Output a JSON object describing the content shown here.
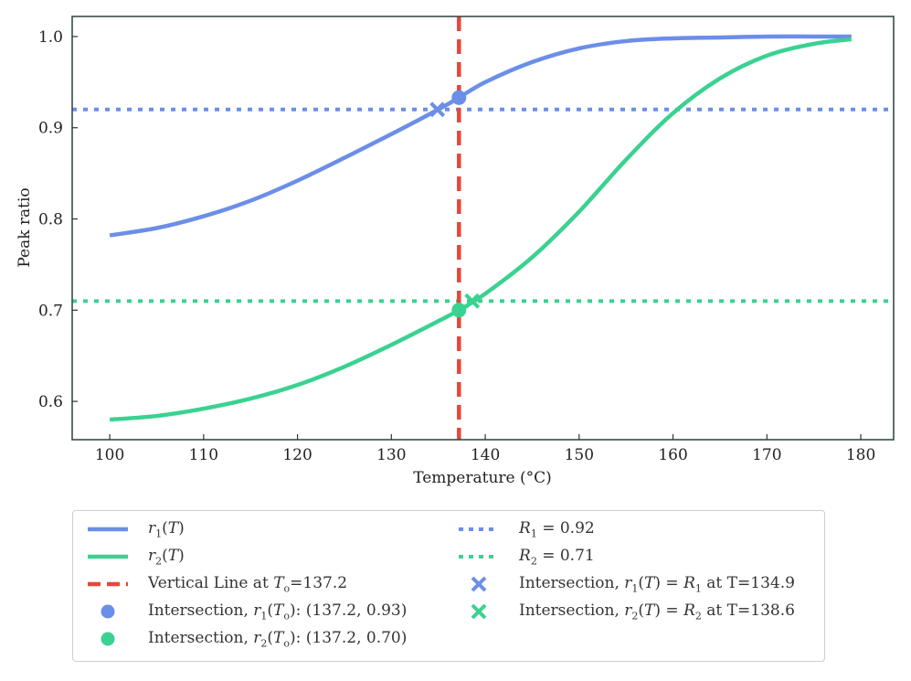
{
  "chart_data": {
    "type": "line",
    "xlabel": "Temperature (°C)",
    "ylabel": "Peak ratio",
    "xlim": [
      96,
      183.5
    ],
    "ylim": [
      0.558,
      1.022
    ],
    "xticks": [
      100,
      110,
      120,
      130,
      140,
      150,
      160,
      170,
      180
    ],
    "yticks": [
      0.6,
      0.7,
      0.8,
      0.9,
      1.0
    ],
    "ytick_labels": [
      "0.6",
      "0.7",
      "0.8",
      "0.9",
      "1.0"
    ],
    "grid": false,
    "legend_position": "below",
    "series": [
      {
        "name": "r1(T)",
        "color": "#6b8ee8",
        "style": "solid",
        "x": [
          100,
          105,
          110,
          115,
          120,
          125,
          130,
          135,
          137.2,
          140,
          145,
          150,
          155,
          160,
          165,
          170,
          175,
          179
        ],
        "y": [
          0.782,
          0.79,
          0.803,
          0.82,
          0.842,
          0.867,
          0.893,
          0.92,
          0.933,
          0.95,
          0.972,
          0.987,
          0.995,
          0.998,
          0.999,
          1.0,
          1.0,
          1.0
        ]
      },
      {
        "name": "r2(T)",
        "color": "#3ad291",
        "style": "solid",
        "x": [
          100,
          105,
          110,
          115,
          120,
          125,
          130,
          135,
          137.2,
          140,
          145,
          150,
          155,
          160,
          165,
          170,
          175,
          179
        ],
        "y": [
          0.58,
          0.584,
          0.592,
          0.603,
          0.618,
          0.638,
          0.662,
          0.688,
          0.7,
          0.718,
          0.758,
          0.808,
          0.865,
          0.916,
          0.954,
          0.979,
          0.992,
          0.997
        ]
      }
    ],
    "reference_lines": {
      "vertical": {
        "x": 137.2,
        "color": "#e5483a",
        "style": "dashed"
      },
      "horizontal": [
        {
          "y": 0.92,
          "color": "#6b8ee8",
          "style": "dotted"
        },
        {
          "y": 0.71,
          "color": "#3ad291",
          "style": "dotted"
        }
      ]
    },
    "markers": [
      {
        "x": 137.2,
        "y": 0.933,
        "shape": "circle",
        "color": "#6b8ee8"
      },
      {
        "x": 137.2,
        "y": 0.7,
        "shape": "circle",
        "color": "#3ad291"
      },
      {
        "x": 134.9,
        "y": 0.92,
        "shape": "x",
        "color": "#6b8ee8"
      },
      {
        "x": 138.6,
        "y": 0.71,
        "shape": "x",
        "color": "#3ad291"
      }
    ]
  },
  "legend": {
    "items": [
      {
        "key": "r1",
        "pre": "",
        "var": "r",
        "sub": "1",
        "arg": "T",
        "post": "",
        "symbol": "solid",
        "color": "#6b8ee8"
      },
      {
        "key": "r2",
        "pre": "",
        "var": "r",
        "sub": "2",
        "arg": "T",
        "post": "",
        "symbol": "solid",
        "color": "#3ad291"
      },
      {
        "key": "vline",
        "pre": "Vertical Line at ",
        "var": "T",
        "sub": "o",
        "arg": "",
        "post": "=137.2",
        "symbol": "dashed",
        "color": "#e5483a"
      },
      {
        "key": "int1",
        "pre": "Intersection, ",
        "var": "r",
        "sub": "1",
        "arg": "T",
        "argsub": "o",
        "post": ": (137.2, 0.93)",
        "symbol": "circle",
        "color": "#6b8ee8"
      },
      {
        "key": "int2",
        "pre": "Intersection, ",
        "var": "r",
        "sub": "2",
        "arg": "T",
        "argsub": "o",
        "post": ": (137.2, 0.70)",
        "symbol": "circle",
        "color": "#3ad291"
      },
      {
        "key": "R1",
        "pre": "",
        "var": "R",
        "sub": "1",
        "arg": "",
        "post": " = 0.92",
        "symbol": "dotted",
        "color": "#6b8ee8"
      },
      {
        "key": "R2",
        "pre": "",
        "var": "R",
        "sub": "2",
        "arg": "",
        "post": " = 0.71",
        "symbol": "dotted",
        "color": "#3ad291"
      },
      {
        "key": "x1",
        "pre": "Intersection, ",
        "var": "r",
        "sub": "1",
        "arg": "T",
        "eqvar": "R",
        "eqsub": "1",
        "post": " at T=134.9",
        "symbol": "x",
        "color": "#6b8ee8"
      },
      {
        "key": "x2",
        "pre": "Intersection, ",
        "var": "r",
        "sub": "2",
        "arg": "T",
        "eqvar": "R",
        "eqsub": "2",
        "post": " at T=138.6",
        "symbol": "x",
        "color": "#3ad291"
      }
    ]
  }
}
